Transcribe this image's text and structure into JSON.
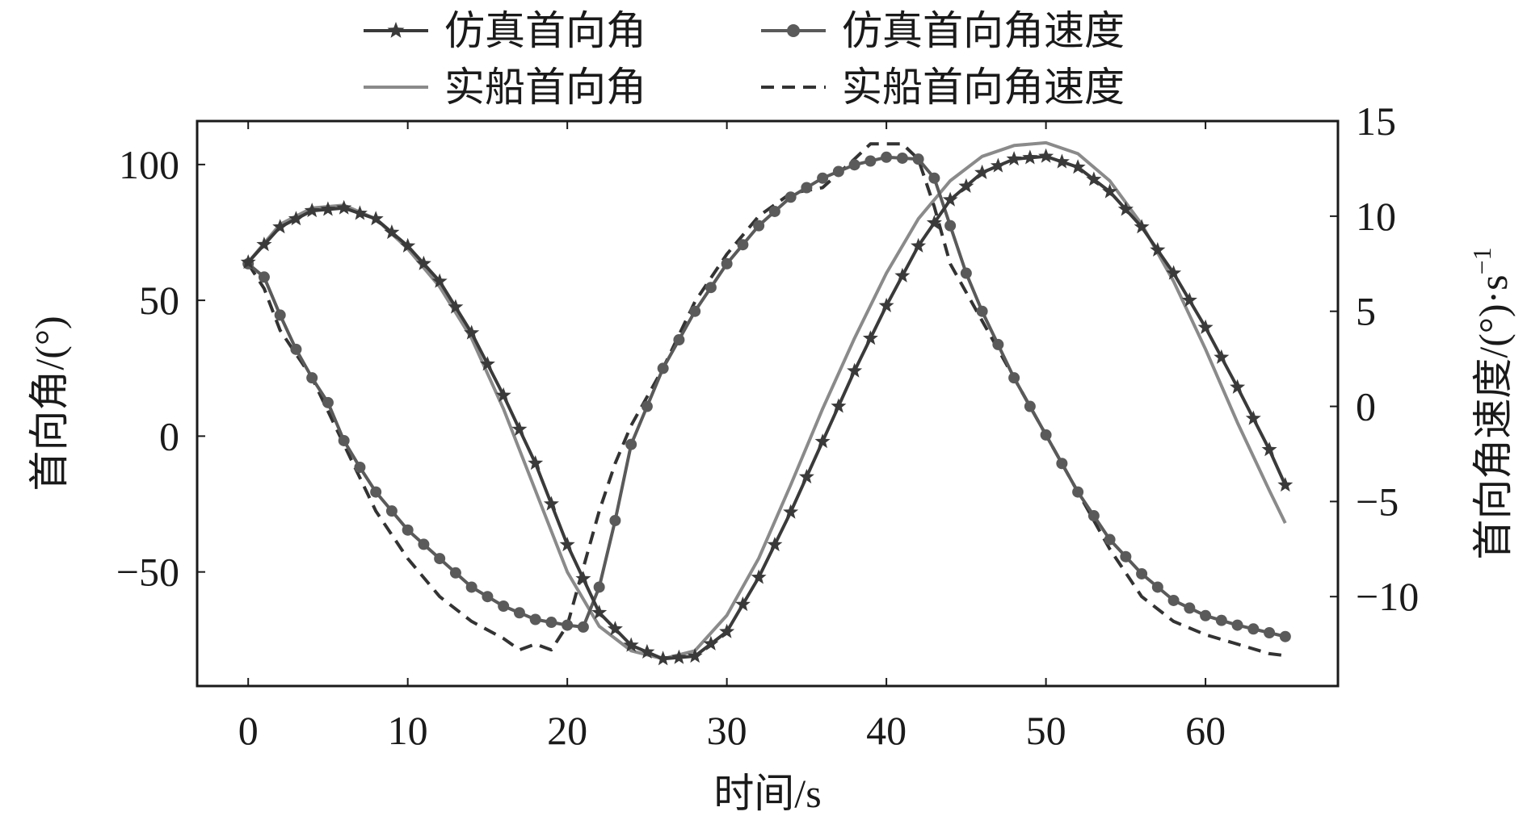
{
  "chart_data": {
    "type": "line",
    "title": "",
    "xlabel": "时间/s",
    "ylabel": "首向角/(°)",
    "y2label_main": "首向角速度/(°)·s",
    "y2label_sup": "−1",
    "xlim": [
      -3.2,
      68.3
    ],
    "ylim": [
      -92,
      116
    ],
    "y2lim": [
      -14.7,
      15
    ],
    "grid": false,
    "legend_position": "top",
    "x_ticks": [
      "0",
      "10",
      "20",
      "30",
      "40",
      "50",
      "60"
    ],
    "y_ticks": [
      "100",
      "50",
      "0",
      "−50"
    ],
    "y2_ticks": [
      "15",
      "10",
      "5",
      "0",
      "−5",
      "−10"
    ],
    "colors": {
      "heading_sim": "#3a3a3a",
      "heading_real": "#8a8a8a",
      "rate_sim": "#5a5a5a",
      "rate_real": "#333333",
      "axis": "#1a1a1a"
    },
    "series": [
      {
        "name": "仿真首向角",
        "axis": "left",
        "style": "solid-star",
        "points": [
          [
            0,
            64
          ],
          [
            2,
            77
          ],
          [
            4,
            83
          ],
          [
            6,
            84
          ],
          [
            8,
            80
          ],
          [
            10,
            70
          ],
          [
            12,
            57
          ],
          [
            14,
            38
          ],
          [
            16,
            15
          ],
          [
            18,
            -10
          ],
          [
            20,
            -40
          ],
          [
            22,
            -65
          ],
          [
            24,
            -77
          ],
          [
            26,
            -82
          ],
          [
            28,
            -81
          ],
          [
            30,
            -72
          ],
          [
            32,
            -52
          ],
          [
            34,
            -28
          ],
          [
            36,
            -2
          ],
          [
            38,
            24
          ],
          [
            40,
            48
          ],
          [
            42,
            70
          ],
          [
            44,
            87
          ],
          [
            46,
            97
          ],
          [
            48,
            102
          ],
          [
            50,
            103
          ],
          [
            52,
            99
          ],
          [
            54,
            90
          ],
          [
            56,
            77
          ],
          [
            58,
            60
          ],
          [
            60,
            40
          ],
          [
            62,
            18
          ],
          [
            64,
            -5
          ],
          [
            65,
            -18
          ]
        ]
      },
      {
        "name": "实船首向角",
        "axis": "left",
        "style": "solid",
        "points": [
          [
            0,
            64
          ],
          [
            2,
            78
          ],
          [
            4,
            84
          ],
          [
            6,
            85
          ],
          [
            8,
            80
          ],
          [
            10,
            69
          ],
          [
            12,
            55
          ],
          [
            14,
            36
          ],
          [
            16,
            10
          ],
          [
            18,
            -20
          ],
          [
            20,
            -50
          ],
          [
            22,
            -70
          ],
          [
            24,
            -79
          ],
          [
            26,
            -82
          ],
          [
            28,
            -79
          ],
          [
            30,
            -66
          ],
          [
            32,
            -45
          ],
          [
            34,
            -18
          ],
          [
            36,
            10
          ],
          [
            38,
            36
          ],
          [
            40,
            60
          ],
          [
            42,
            80
          ],
          [
            44,
            94
          ],
          [
            46,
            103
          ],
          [
            48,
            107
          ],
          [
            50,
            108
          ],
          [
            52,
            104
          ],
          [
            54,
            94
          ],
          [
            56,
            78
          ],
          [
            58,
            57
          ],
          [
            60,
            32
          ],
          [
            62,
            5
          ],
          [
            64,
            -20
          ],
          [
            65,
            -32
          ]
        ]
      },
      {
        "name": "仿真首向角速度",
        "axis": "right",
        "style": "solid-dot",
        "points": [
          [
            0,
            7.5
          ],
          [
            1,
            6.8
          ],
          [
            2,
            4.8
          ],
          [
            3,
            3.0
          ],
          [
            4,
            1.5
          ],
          [
            5,
            0.2
          ],
          [
            6,
            -1.8
          ],
          [
            7,
            -3.2
          ],
          [
            8,
            -4.5
          ],
          [
            10,
            -6.5
          ],
          [
            12,
            -8.0
          ],
          [
            14,
            -9.5
          ],
          [
            16,
            -10.5
          ],
          [
            18,
            -11.2
          ],
          [
            20,
            -11.5
          ],
          [
            21,
            -11.6
          ],
          [
            22,
            -9.5
          ],
          [
            23,
            -6.0
          ],
          [
            24,
            -2.0
          ],
          [
            26,
            2.0
          ],
          [
            28,
            5.0
          ],
          [
            30,
            7.5
          ],
          [
            32,
            9.5
          ],
          [
            34,
            11.0
          ],
          [
            36,
            12.0
          ],
          [
            38,
            12.7
          ],
          [
            40,
            13.1
          ],
          [
            42,
            13.0
          ],
          [
            43,
            12.0
          ],
          [
            44,
            9.5
          ],
          [
            45,
            7.0
          ],
          [
            46,
            5.0
          ],
          [
            48,
            1.5
          ],
          [
            50,
            -1.5
          ],
          [
            52,
            -4.5
          ],
          [
            54,
            -7.0
          ],
          [
            56,
            -8.8
          ],
          [
            58,
            -10.2
          ],
          [
            60,
            -11.0
          ],
          [
            62,
            -11.5
          ],
          [
            64,
            -11.9
          ],
          [
            65,
            -12.1
          ]
        ]
      },
      {
        "name": "实船首向角速度",
        "axis": "right",
        "style": "dashed",
        "points": [
          [
            0,
            7.5
          ],
          [
            1,
            6.2
          ],
          [
            2,
            4.0
          ],
          [
            4,
            1.5
          ],
          [
            6,
            -2.0
          ],
          [
            8,
            -5.5
          ],
          [
            10,
            -8.0
          ],
          [
            12,
            -10.0
          ],
          [
            14,
            -11.3
          ],
          [
            16,
            -12.2
          ],
          [
            17,
            -12.8
          ],
          [
            18,
            -12.5
          ],
          [
            19,
            -12.8
          ],
          [
            20,
            -11.5
          ],
          [
            21,
            -8.5
          ],
          [
            22,
            -5.5
          ],
          [
            23,
            -3.0
          ],
          [
            24,
            -1.0
          ],
          [
            26,
            2.0
          ],
          [
            28,
            5.5
          ],
          [
            30,
            8.0
          ],
          [
            32,
            10.0
          ],
          [
            34,
            11.2
          ],
          [
            36,
            11.5
          ],
          [
            38,
            13.0
          ],
          [
            39,
            13.8
          ],
          [
            40,
            13.8
          ],
          [
            41,
            13.8
          ],
          [
            42,
            13.0
          ],
          [
            43,
            10.5
          ],
          [
            44,
            7.5
          ],
          [
            46,
            4.5
          ],
          [
            48,
            1.5
          ],
          [
            50,
            -1.5
          ],
          [
            52,
            -4.5
          ],
          [
            54,
            -7.5
          ],
          [
            56,
            -10.0
          ],
          [
            58,
            -11.3
          ],
          [
            60,
            -12.0
          ],
          [
            62,
            -12.5
          ],
          [
            64,
            -13.0
          ],
          [
            65,
            -13.1
          ]
        ]
      }
    ]
  }
}
